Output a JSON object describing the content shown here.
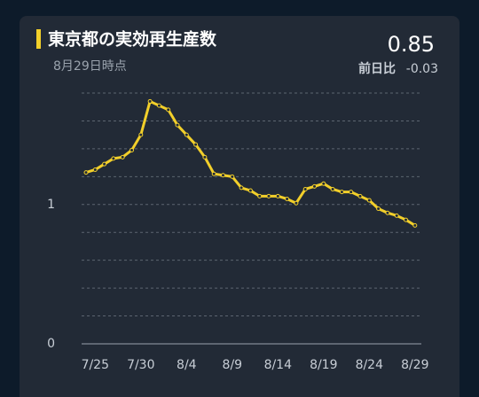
{
  "chart_data": {
    "type": "line",
    "title": "東京都の実効再生産数",
    "subtitle": "8月29日時点",
    "latest": 0.85,
    "change_label": "前日比",
    "change": -0.03,
    "categories": [
      null,
      "7/25",
      null,
      null,
      null,
      null,
      "7/30",
      null,
      null,
      null,
      null,
      "8/4",
      null,
      null,
      null,
      null,
      "8/9",
      null,
      null,
      null,
      null,
      "8/14",
      null,
      null,
      null,
      null,
      "8/19",
      null,
      null,
      null,
      null,
      "8/24",
      null,
      null,
      null,
      null,
      "8/29"
    ],
    "values": [
      1.23,
      1.25,
      1.29,
      1.33,
      1.34,
      1.39,
      1.5,
      1.74,
      1.71,
      1.68,
      1.57,
      1.5,
      1.43,
      1.34,
      1.22,
      1.21,
      1.2,
      1.12,
      1.1,
      1.06,
      1.06,
      1.06,
      1.04,
      1.01,
      1.11,
      1.13,
      1.15,
      1.11,
      1.09,
      1.09,
      1.06,
      1.03,
      0.97,
      0.94,
      0.92,
      0.89,
      0.85
    ],
    "color": "#f2cf2a",
    "ylim": [
      0,
      1.8
    ],
    "yticks": [
      0,
      1
    ],
    "gridlines": [
      0.2,
      0.4,
      0.6,
      0.8,
      1,
      1.2,
      1.4,
      1.6,
      1.8
    ],
    "grid": true
  }
}
